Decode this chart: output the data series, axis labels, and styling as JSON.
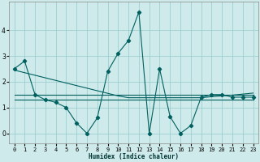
{
  "xlabel": "Humidex (Indice chaleur)",
  "background_color": "#ceeaea",
  "grid_color": "#9dcfcf",
  "line_color": "#006060",
  "x_values": [
    0,
    1,
    2,
    3,
    4,
    5,
    6,
    7,
    8,
    9,
    10,
    11,
    12,
    13,
    14,
    15,
    16,
    17,
    18,
    19,
    20,
    21,
    22,
    23
  ],
  "y_main": [
    2.5,
    2.8,
    1.5,
    1.3,
    1.2,
    1.0,
    0.4,
    0.0,
    0.6,
    2.4,
    3.1,
    3.6,
    4.7,
    0.0,
    2.5,
    0.65,
    0.0,
    0.3,
    1.4,
    1.5,
    1.5,
    1.4,
    1.4,
    1.4
  ],
  "y_trend1": [
    1.5,
    1.5,
    1.5,
    1.5,
    1.5,
    1.5,
    1.5,
    1.5,
    1.5,
    1.5,
    1.5,
    1.5,
    1.5,
    1.5,
    1.5,
    1.5,
    1.5,
    1.5,
    1.5,
    1.5,
    1.5,
    1.5,
    1.5,
    1.5
  ],
  "y_trend2": [
    2.45,
    2.35,
    2.25,
    2.15,
    2.05,
    1.95,
    1.85,
    1.75,
    1.65,
    1.55,
    1.45,
    1.38,
    1.38,
    1.38,
    1.38,
    1.38,
    1.38,
    1.38,
    1.38,
    1.42,
    1.45,
    1.48,
    1.52,
    1.56
  ],
  "y_trend3": [
    1.3,
    1.3,
    1.3,
    1.3,
    1.3,
    1.3,
    1.3,
    1.3,
    1.3,
    1.3,
    1.3,
    1.3,
    1.3,
    1.3,
    1.3,
    1.3,
    1.3,
    1.3,
    1.3,
    1.3,
    1.3,
    1.3,
    1.3,
    1.3
  ],
  "ylim": [
    -0.4,
    5.1
  ],
  "xlim": [
    -0.5,
    23.5
  ],
  "yticks": [
    0,
    1,
    2,
    3,
    4
  ],
  "xticks": [
    0,
    1,
    2,
    3,
    4,
    5,
    6,
    7,
    8,
    9,
    10,
    11,
    12,
    13,
    14,
    15,
    16,
    17,
    18,
    19,
    20,
    21,
    22,
    23
  ],
  "xlabel_fontsize": 5.5,
  "tick_labelsize": 5.0,
  "line_width": 0.8,
  "marker_size": 2.2
}
